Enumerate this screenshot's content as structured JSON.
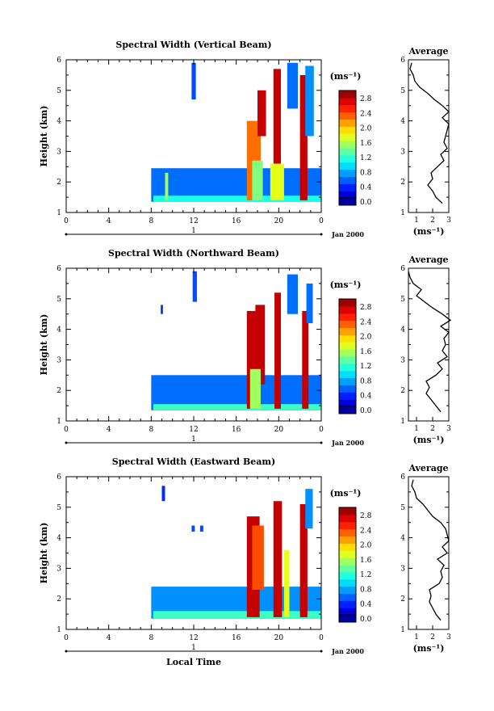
{
  "figure": {
    "x_axis_label": "Local Time",
    "date_label": "Jan 2000",
    "day_label": "1",
    "colorbar_unit": "(ms⁻¹)",
    "profile_title": "Average",
    "profile_unit": "(ms⁻¹)"
  },
  "chart_data": [
    {
      "type": "heatmap",
      "title": "Spectral Width (Vertical Beam)",
      "xlabel": "",
      "ylabel": "Height (km)",
      "xlim": [
        0,
        24
      ],
      "ylim": [
        1,
        6
      ],
      "xticks": [
        "0",
        "4",
        "8",
        "12",
        "16",
        "20",
        "0"
      ],
      "yticks": [
        "1",
        "2",
        "3",
        "4",
        "5",
        "6"
      ],
      "colorbar": {
        "unit": "(ms⁻¹)",
        "range": [
          0,
          3
        ],
        "ticks": [
          "0.0",
          "0.4",
          "0.8",
          "1.2",
          "1.6",
          "2.0",
          "2.4",
          "2.8"
        ]
      },
      "regions": [
        {
          "x": [
            8.0,
            24.0
          ],
          "y": [
            1.35,
            2.45
          ],
          "value": 0.7
        },
        {
          "x": [
            8.2,
            24.0
          ],
          "y": [
            1.35,
            1.55
          ],
          "value": 1.2
        },
        {
          "x": [
            9.3,
            9.6
          ],
          "y": [
            1.4,
            2.3
          ],
          "value": 1.6
        },
        {
          "x": [
            11.8,
            12.2
          ],
          "y": [
            4.7,
            5.9
          ],
          "value": 0.6
        },
        {
          "x": [
            17.0,
            18.3
          ],
          "y": [
            1.4,
            4.0
          ],
          "value": 2.3
        },
        {
          "x": [
            18.0,
            18.8
          ],
          "y": [
            3.5,
            5.0
          ],
          "value": 2.8
        },
        {
          "x": [
            17.5,
            18.5
          ],
          "y": [
            1.4,
            2.7
          ],
          "value": 1.5
        },
        {
          "x": [
            19.5,
            20.2
          ],
          "y": [
            1.4,
            5.7
          ],
          "value": 2.8
        },
        {
          "x": [
            19.2,
            20.5
          ],
          "y": [
            1.4,
            2.6
          ],
          "value": 1.8
        },
        {
          "x": [
            20.8,
            21.8
          ],
          "y": [
            4.4,
            5.9
          ],
          "value": 0.7
        },
        {
          "x": [
            22.0,
            22.7
          ],
          "y": [
            1.4,
            5.5
          ],
          "value": 2.8
        },
        {
          "x": [
            22.5,
            23.3
          ],
          "y": [
            3.5,
            5.8
          ],
          "value": 0.8
        }
      ],
      "profile": {
        "xlabel": "(ms⁻¹)",
        "xlim": [
          0.5,
          3
        ],
        "xticks": [
          "1",
          "2",
          "3"
        ],
        "height": [
          1.3,
          1.5,
          1.7,
          1.9,
          2.1,
          2.3,
          2.5,
          2.7,
          2.9,
          3.1,
          3.3,
          3.5,
          3.7,
          3.9,
          4.1,
          4.3,
          4.5,
          4.7,
          4.9,
          5.1,
          5.3,
          5.5,
          5.7,
          5.9
        ],
        "average": [
          2.6,
          2.2,
          2.0,
          1.7,
          2.0,
          1.9,
          2.3,
          2.7,
          2.5,
          2.9,
          2.7,
          2.8,
          2.9,
          3.0,
          2.6,
          3.0,
          2.6,
          2.1,
          1.7,
          1.2,
          0.9,
          0.8,
          0.6,
          0.7
        ]
      }
    },
    {
      "type": "heatmap",
      "title": "Spectral Width (Northward Beam)",
      "xlabel": "",
      "ylabel": "Height (km)",
      "xlim": [
        0,
        24
      ],
      "ylim": [
        1,
        6
      ],
      "xticks": [
        "0",
        "4",
        "8",
        "12",
        "16",
        "20",
        "0"
      ],
      "yticks": [
        "1",
        "2",
        "3",
        "4",
        "5",
        "6"
      ],
      "colorbar": {
        "unit": "(ms⁻¹)",
        "range": [
          0,
          3
        ],
        "ticks": [
          "0.0",
          "0.4",
          "0.8",
          "1.2",
          "1.6",
          "2.0",
          "2.4",
          "2.8"
        ]
      },
      "regions": [
        {
          "x": [
            8.0,
            24.0
          ],
          "y": [
            1.35,
            2.5
          ],
          "value": 0.7
        },
        {
          "x": [
            8.2,
            24.0
          ],
          "y": [
            1.35,
            1.55
          ],
          "value": 1.3
        },
        {
          "x": [
            11.9,
            12.3
          ],
          "y": [
            4.9,
            5.9
          ],
          "value": 0.6
        },
        {
          "x": [
            8.9,
            9.1
          ],
          "y": [
            4.5,
            4.8
          ],
          "value": 0.5
        },
        {
          "x": [
            17.0,
            18.0
          ],
          "y": [
            1.4,
            4.6
          ],
          "value": 2.8
        },
        {
          "x": [
            17.8,
            18.7
          ],
          "y": [
            2.2,
            4.8
          ],
          "value": 2.8
        },
        {
          "x": [
            17.3,
            18.3
          ],
          "y": [
            1.4,
            2.7
          ],
          "value": 1.6
        },
        {
          "x": [
            19.6,
            20.2
          ],
          "y": [
            1.4,
            5.2
          ],
          "value": 2.8
        },
        {
          "x": [
            20.8,
            21.8
          ],
          "y": [
            4.5,
            5.8
          ],
          "value": 0.7
        },
        {
          "x": [
            22.2,
            22.8
          ],
          "y": [
            1.4,
            4.6
          ],
          "value": 2.8
        },
        {
          "x": [
            22.6,
            23.2
          ],
          "y": [
            4.2,
            5.5
          ],
          "value": 0.7
        }
      ],
      "profile": {
        "xlabel": "(ms⁻¹)",
        "xlim": [
          0.5,
          3
        ],
        "xticks": [
          "1",
          "2",
          "3"
        ],
        "height": [
          1.3,
          1.5,
          1.7,
          1.9,
          2.1,
          2.3,
          2.5,
          2.7,
          2.9,
          3.1,
          3.3,
          3.5,
          3.7,
          3.9,
          4.1,
          4.3,
          4.5,
          4.7,
          4.9,
          5.1,
          5.3,
          5.5,
          5.7,
          5.9
        ],
        "average": [
          2.5,
          2.2,
          1.9,
          1.6,
          1.8,
          1.6,
          2.2,
          2.6,
          2.3,
          2.9,
          2.6,
          2.8,
          2.7,
          3.0,
          2.5,
          3.1,
          2.6,
          2.0,
          1.5,
          1.0,
          1.3,
          0.8,
          0.6,
          0.5
        ]
      }
    },
    {
      "type": "heatmap",
      "title": "Spectral Width (Eastward Beam)",
      "xlabel": "Local Time",
      "ylabel": "Height (km)",
      "xlim": [
        0,
        24
      ],
      "ylim": [
        1,
        6
      ],
      "xticks": [
        "0",
        "4",
        "8",
        "12",
        "16",
        "20",
        "0"
      ],
      "yticks": [
        "1",
        "2",
        "3",
        "4",
        "5",
        "6"
      ],
      "colorbar": {
        "unit": "(ms⁻¹)",
        "range": [
          0,
          3
        ],
        "ticks": [
          "0.0",
          "0.4",
          "0.8",
          "1.2",
          "1.6",
          "2.0",
          "2.4",
          "2.8"
        ]
      },
      "regions": [
        {
          "x": [
            8.0,
            24.0
          ],
          "y": [
            1.35,
            2.4
          ],
          "value": 0.8
        },
        {
          "x": [
            8.2,
            24.0
          ],
          "y": [
            1.35,
            1.6
          ],
          "value": 1.3
        },
        {
          "x": [
            9.0,
            9.3
          ],
          "y": [
            5.2,
            5.7
          ],
          "value": 0.5
        },
        {
          "x": [
            11.8,
            12.1
          ],
          "y": [
            4.2,
            4.4
          ],
          "value": 0.6
        },
        {
          "x": [
            12.6,
            12.9
          ],
          "y": [
            4.2,
            4.4
          ],
          "value": 0.6
        },
        {
          "x": [
            17.0,
            18.2
          ],
          "y": [
            1.4,
            4.7
          ],
          "value": 2.8
        },
        {
          "x": [
            17.5,
            18.6
          ],
          "y": [
            2.3,
            4.4
          ],
          "value": 2.4
        },
        {
          "x": [
            19.5,
            20.3
          ],
          "y": [
            1.4,
            5.2
          ],
          "value": 2.8
        },
        {
          "x": [
            20.5,
            21.0
          ],
          "y": [
            1.4,
            3.6
          ],
          "value": 1.8
        },
        {
          "x": [
            22.0,
            22.7
          ],
          "y": [
            1.4,
            5.1
          ],
          "value": 2.8
        },
        {
          "x": [
            22.5,
            23.2
          ],
          "y": [
            4.3,
            5.6
          ],
          "value": 0.8
        }
      ],
      "profile": {
        "xlabel": "(ms⁻¹)",
        "xlim": [
          0.5,
          3
        ],
        "xticks": [
          "1",
          "2",
          "3"
        ],
        "height": [
          1.3,
          1.5,
          1.7,
          1.9,
          2.1,
          2.3,
          2.5,
          2.7,
          2.9,
          3.1,
          3.3,
          3.5,
          3.7,
          3.9,
          4.1,
          4.3,
          4.5,
          4.7,
          4.9,
          5.1,
          5.3,
          5.5,
          5.7,
          5.9
        ],
        "average": [
          2.5,
          2.2,
          2.0,
          1.8,
          1.9,
          1.8,
          2.4,
          2.6,
          2.5,
          2.7,
          2.3,
          2.9,
          2.6,
          3.0,
          2.9,
          2.8,
          2.5,
          2.0,
          1.7,
          1.4,
          1.0,
          0.9,
          0.7,
          0.8
        ]
      }
    }
  ]
}
